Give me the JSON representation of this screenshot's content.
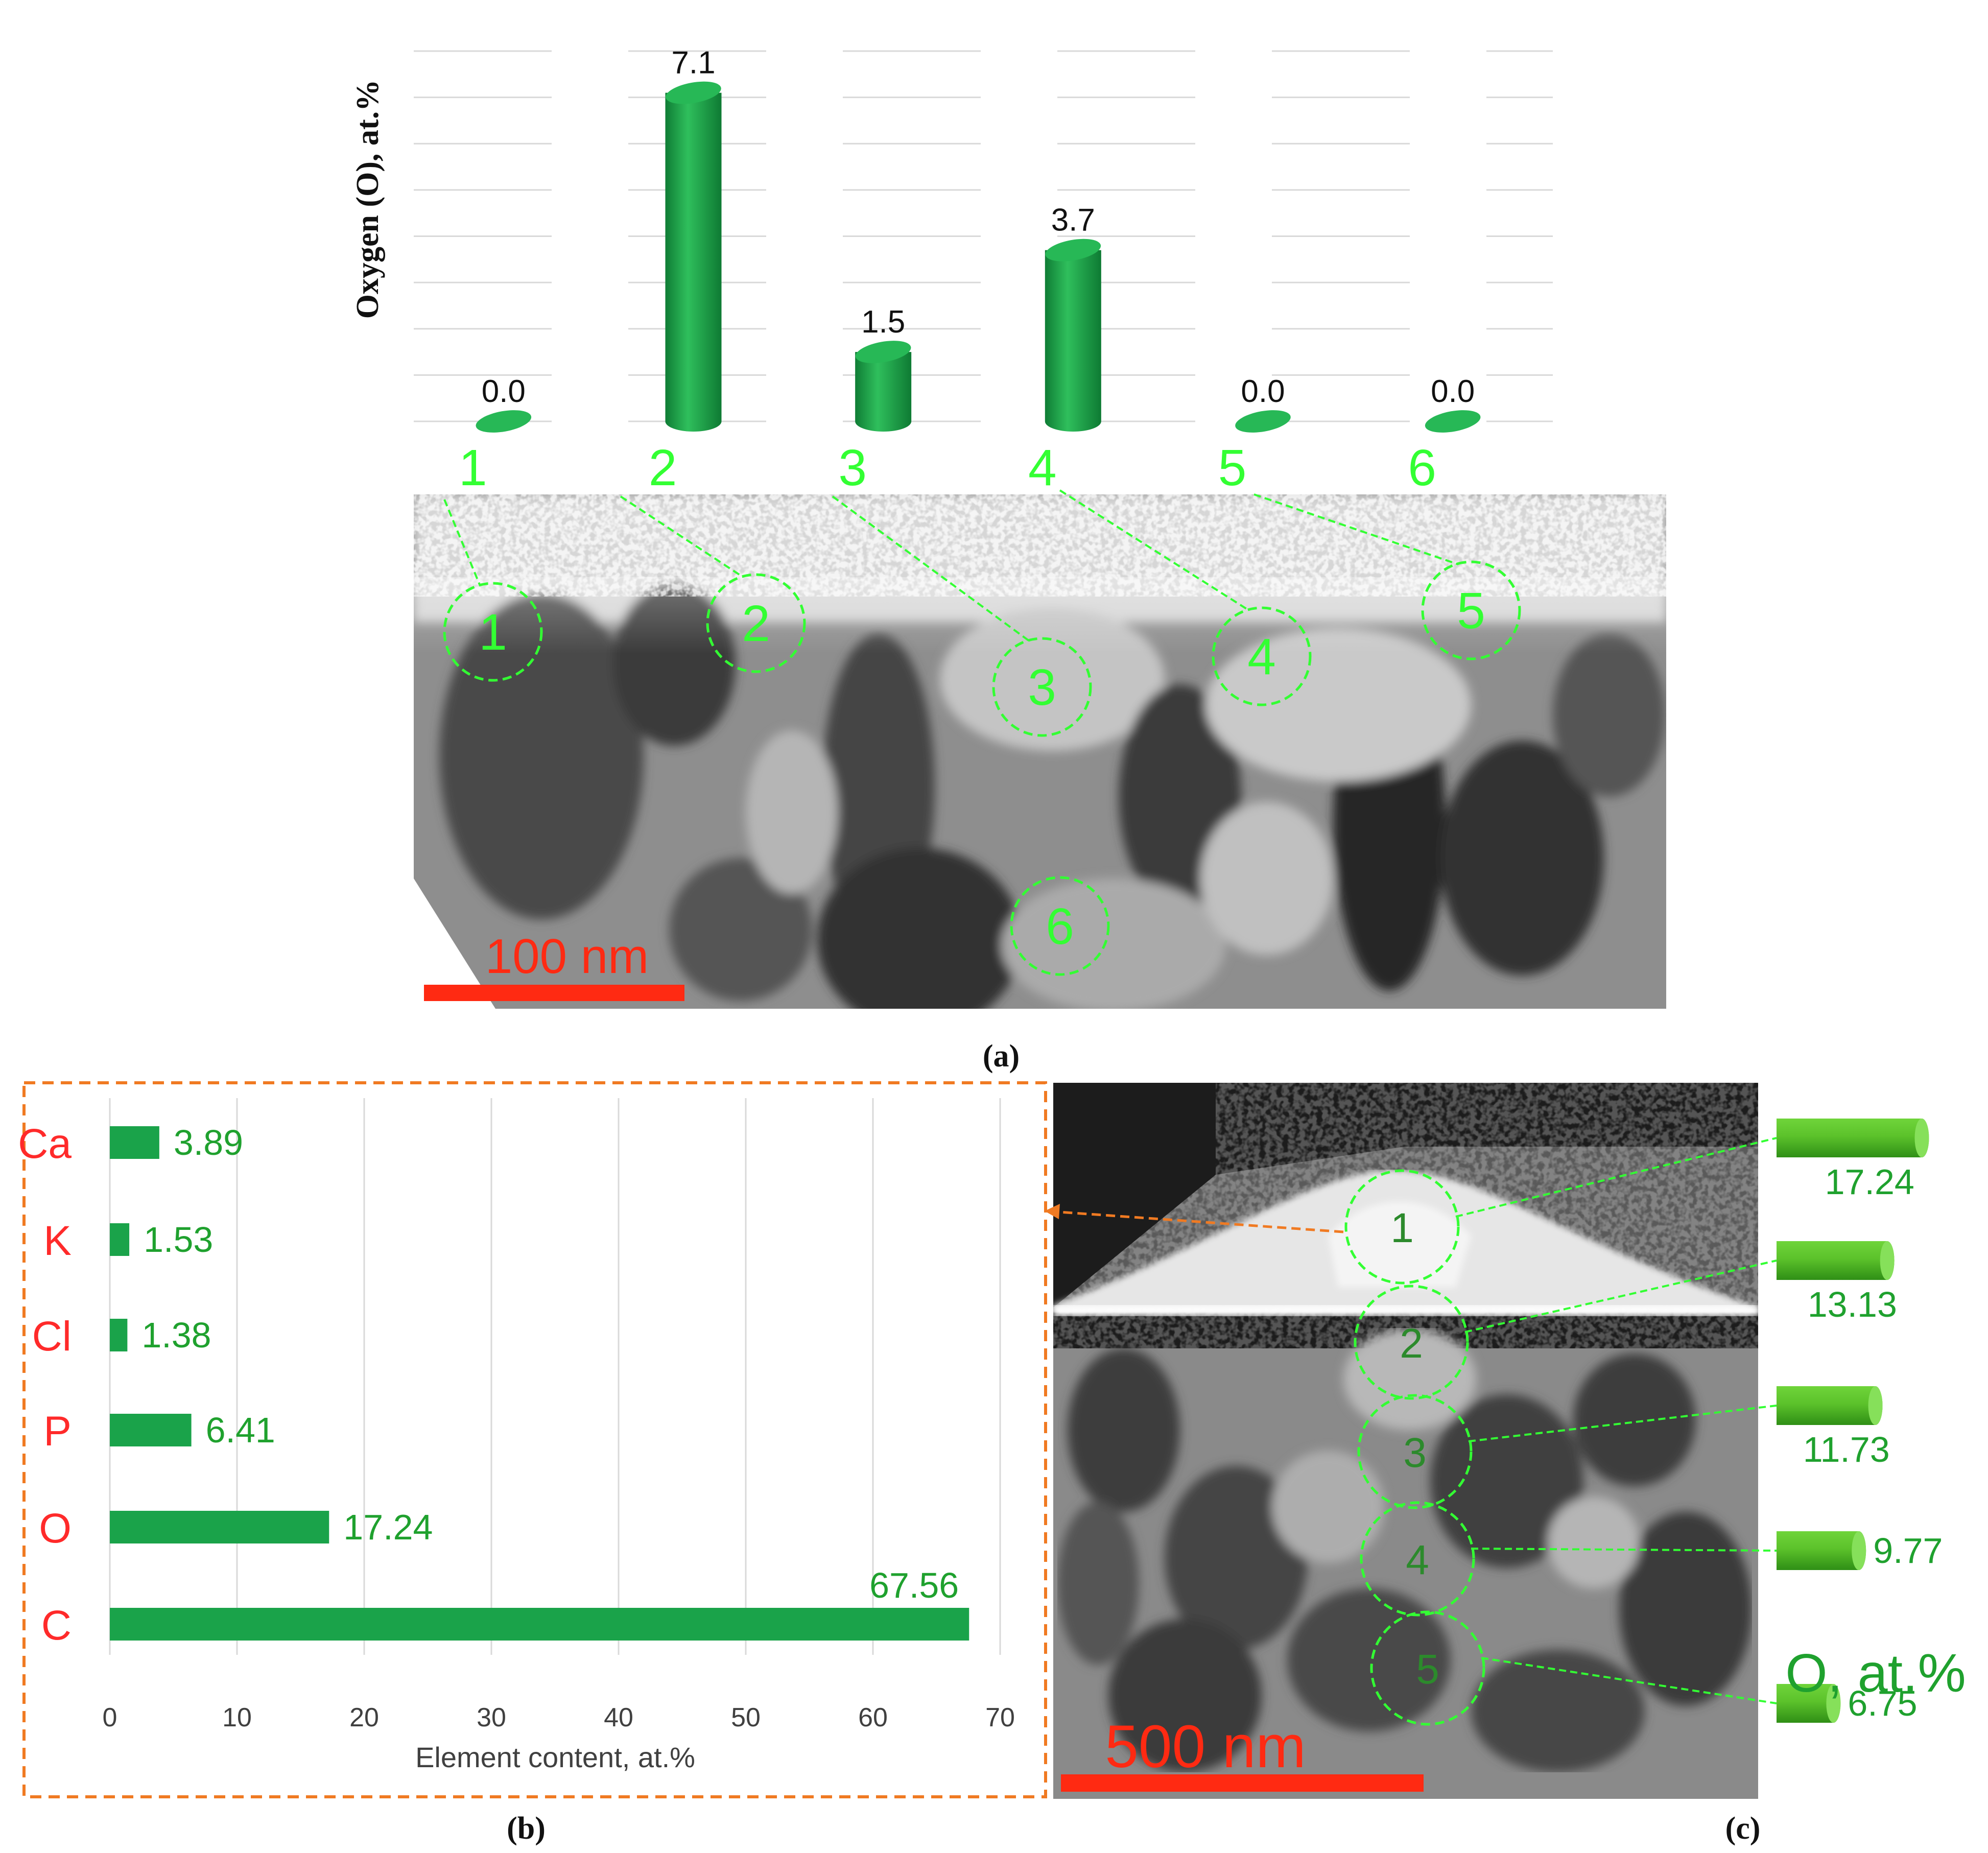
{
  "colors": {
    "bar_green": "#1aa34a",
    "label_green": "#1fa12e",
    "marker_green": "#33ff33",
    "element_red": "#ff2a2a",
    "scale_red": "#ff2a12",
    "frame_orange": "#f07a22",
    "grid_gray": "#d9d9d9",
    "text_black": "#111111"
  },
  "panels": {
    "a_label": "(a)",
    "b_label": "(b)",
    "c_label": "(c)"
  },
  "chart_data": [
    {
      "type": "bar",
      "panel": "a",
      "categories": [
        "1",
        "2",
        "3",
        "4",
        "5",
        "6"
      ],
      "values": [
        0.0,
        7.1,
        1.5,
        3.7,
        0.0,
        0.0
      ],
      "value_labels": [
        "0.0",
        "7.1",
        "1.5",
        "3.7",
        "0.0",
        "0.0"
      ],
      "ylabel": "Oxygen (O), at.%",
      "ylim": [
        0,
        8
      ],
      "grid": true,
      "bar_style": "cylinder"
    },
    {
      "type": "bar",
      "panel": "b",
      "orientation": "horizontal",
      "categories": [
        "Ca",
        "K",
        "Cl",
        "P",
        "O",
        "C"
      ],
      "values": [
        3.89,
        1.53,
        1.38,
        6.41,
        17.24,
        67.56
      ],
      "value_labels": [
        "3.89",
        "1.53",
        "1.38",
        "6.41",
        "17.24",
        "67.56"
      ],
      "xlabel": "Element content, at.%",
      "xticks": [
        "0",
        "10",
        "20",
        "30",
        "40",
        "50",
        "60",
        "70"
      ],
      "xlim": [
        0,
        70
      ],
      "grid": true
    },
    {
      "type": "bar",
      "panel": "c",
      "orientation": "horizontal",
      "categories": [
        "1",
        "2",
        "3",
        "4",
        "5"
      ],
      "values": [
        17.24,
        13.13,
        11.73,
        9.77,
        6.75
      ],
      "value_labels": [
        "17.24",
        "13.13",
        "11.73",
        "9.77",
        "6.75"
      ],
      "label": "O, at.%",
      "bar_style": "cylinder"
    }
  ],
  "micrograph_a": {
    "scale_bar": "100 nm",
    "markers": [
      "1",
      "2",
      "3",
      "4",
      "5",
      "6"
    ]
  },
  "micrograph_c": {
    "scale_bar": "500 nm",
    "markers": [
      "1",
      "2",
      "3",
      "4",
      "5"
    ]
  }
}
